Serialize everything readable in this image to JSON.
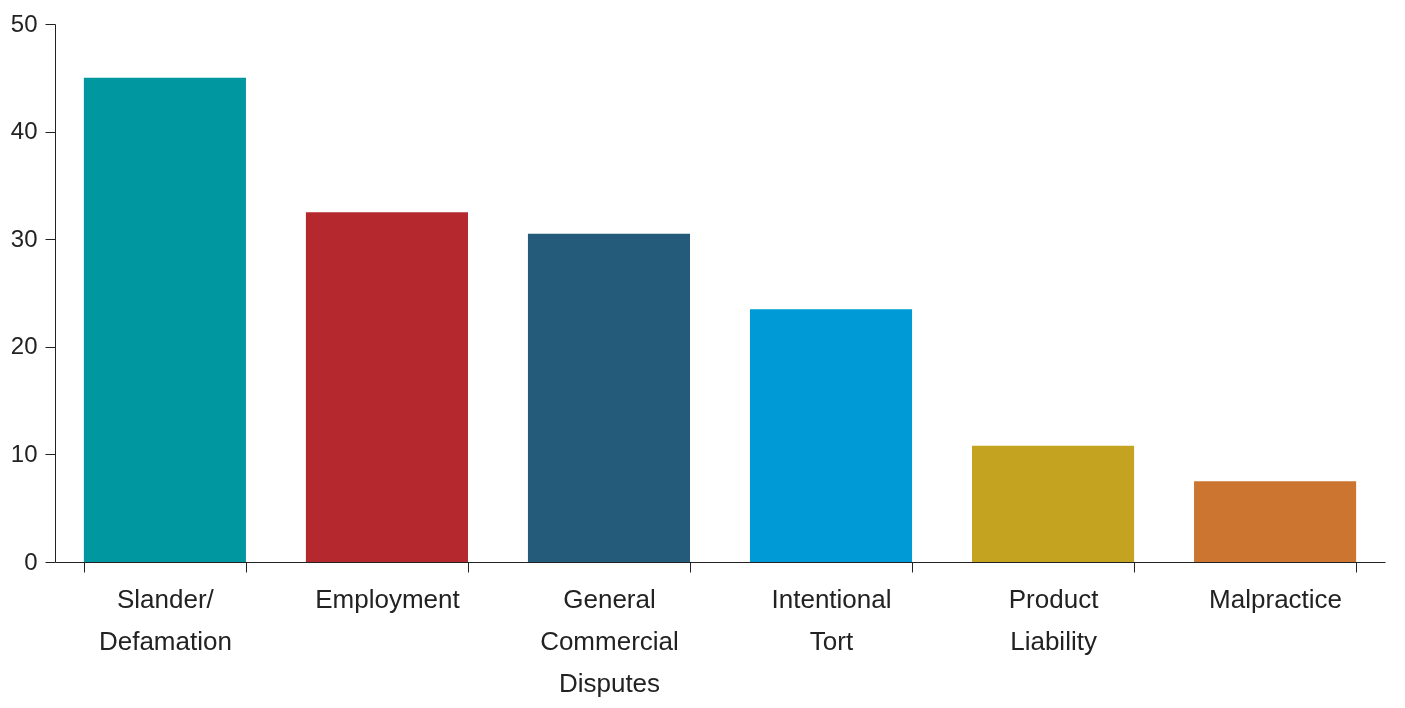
{
  "chart_data": {
    "type": "bar",
    "categories": [
      "Slander/Defamation",
      "Employment",
      "General Commercial Disputes",
      "Intentional Tort",
      "Product Liability",
      "Malpractice"
    ],
    "values": [
      45,
      32.5,
      30.5,
      23.5,
      10.8,
      7.5
    ],
    "colors": [
      "#0097a0",
      "#b5282e",
      "#245a7a",
      "#009bd6",
      "#c4a320",
      "#cc7530"
    ],
    "ylim": [
      0,
      50
    ],
    "yticks": [
      0,
      10,
      20,
      30,
      40,
      50
    ],
    "grid": false
  }
}
